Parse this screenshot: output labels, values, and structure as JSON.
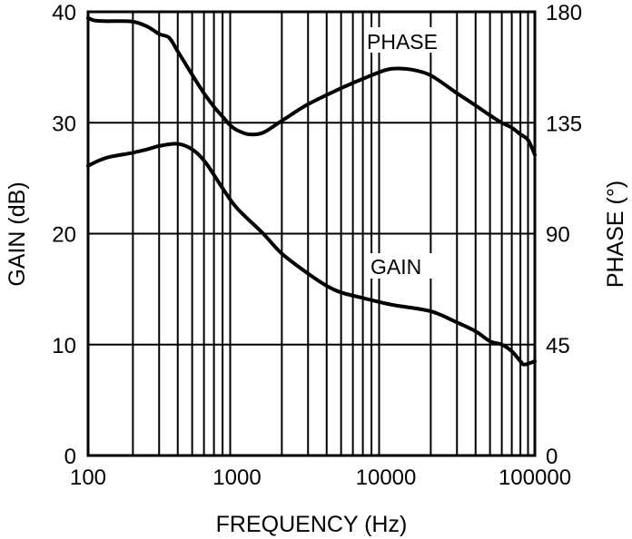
{
  "chart_data": {
    "type": "line",
    "title": "",
    "xlabel": "FREQUENCY (Hz)",
    "ylabel": "GAIN (dB)",
    "y2label": "PHASE (°)",
    "xscale": "log",
    "xlim": [
      100,
      100000
    ],
    "ylim": [
      0,
      40
    ],
    "y2lim": [
      0,
      180
    ],
    "grid": true,
    "legend": "none (inline curve labels)",
    "x_ticks": [
      "100",
      "1000",
      "10000",
      "100000"
    ],
    "y_ticks": [
      "0",
      "10",
      "20",
      "30",
      "40"
    ],
    "y2_ticks": [
      "0",
      "45",
      "90",
      "135",
      "180"
    ],
    "annotations": [
      {
        "text": "PHASE",
        "x": 15000,
        "y_phase": 165
      },
      {
        "text": "GAIN",
        "x": 15000,
        "y_gain": 17
      }
    ],
    "series": [
      {
        "name": "GAIN",
        "axis": "left",
        "unit": "dB",
        "x": [
          100,
          110,
          130,
          150,
          200,
          250,
          300,
          400,
          500,
          600,
          700,
          800,
          1000,
          1500,
          2000,
          3000,
          4000,
          5000,
          7000,
          10000,
          12000,
          20000,
          30000,
          40000,
          50000,
          60000,
          70000,
          80000,
          85000,
          100000
        ],
        "values": [
          26.1,
          26.4,
          26.8,
          27.0,
          27.3,
          27.6,
          27.9,
          28.1,
          27.6,
          26.6,
          25.3,
          24.1,
          22.3,
          20.0,
          18.2,
          16.4,
          15.3,
          14.7,
          14.2,
          13.7,
          13.5,
          13.0,
          12.0,
          11.2,
          10.3,
          10.0,
          9.4,
          8.5,
          8.2,
          8.5
        ]
      },
      {
        "name": "PHASE",
        "axis": "right",
        "unit": "deg",
        "x": [
          100,
          110,
          130,
          150,
          200,
          250,
          300,
          350,
          400,
          500,
          600,
          700,
          800,
          900,
          1000,
          1200,
          1500,
          2000,
          3000,
          5000,
          7000,
          10000,
          12000,
          15000,
          20000,
          30000,
          40000,
          50000,
          60000,
          70000,
          80000,
          90000,
          100000
        ],
        "values": [
          177.5,
          176.5,
          176.2,
          176.2,
          176.0,
          174.0,
          171.0,
          169.5,
          164.0,
          154.5,
          147.0,
          141.5,
          137.5,
          134.0,
          132.0,
          130.3,
          131.0,
          135.8,
          142.5,
          149.0,
          152.8,
          156.4,
          157.0,
          156.5,
          154.2,
          147.0,
          142.0,
          138.0,
          135.0,
          133.0,
          130.3,
          128.0,
          122.0
        ]
      }
    ]
  },
  "labels": {
    "phase_curve": "PHASE",
    "gain_curve": "GAIN",
    "x_title": "FREQUENCY (Hz)",
    "y_left_title": "GAIN (dB)",
    "y_right_title": "PHASE (°)"
  },
  "colors": {
    "line": "#000000",
    "background": "#ffffff"
  }
}
